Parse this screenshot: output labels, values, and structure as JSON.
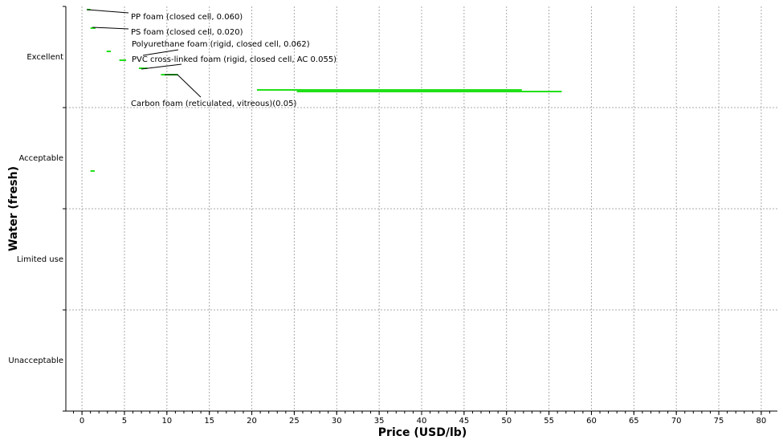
{
  "chart_data": {
    "type": "range",
    "xlabel": "Price (USD/lb)",
    "ylabel": "Water (fresh)",
    "categories": [
      "Excellent",
      "Acceptable",
      "Limited use",
      "Unacceptable"
    ],
    "xlim": [
      -1.9,
      81.9
    ],
    "xticks": [
      0,
      5,
      10,
      15,
      20,
      25,
      30,
      35,
      40,
      45,
      50,
      55,
      60,
      65,
      70,
      75,
      80
    ],
    "grid": true,
    "color": "#22e01a",
    "bars": [
      {
        "category": "Excellent",
        "low": 0.6,
        "high": 1.0
      },
      {
        "category": "Excellent",
        "low": 1.0,
        "high": 1.6
      },
      {
        "category": "Excellent",
        "low": 2.9,
        "high": 3.4
      },
      {
        "category": "Excellent",
        "low": 4.4,
        "high": 5.2
      },
      {
        "category": "Excellent",
        "low": 6.7,
        "high": 7.7
      },
      {
        "category": "Excellent",
        "low": 9.3,
        "high": 11.3
      },
      {
        "category": "Excellent",
        "low": 20.6,
        "high": 51.8
      },
      {
        "category": "Excellent",
        "low": 25.3,
        "high": 56.5
      },
      {
        "category": "Acceptable",
        "low": 1.0,
        "high": 1.5
      }
    ],
    "annotations": [
      "PP foam (closed cell, 0.060)",
      "PS foam (closed cell, 0.020)",
      "Polyurethane foam (rigid, closed cell, 0.062)",
      "PVC cross-linked foam (rigid, closed cell, AC 0.055)",
      "Carbon foam (reticulated, vitreous)(0.05)"
    ]
  }
}
